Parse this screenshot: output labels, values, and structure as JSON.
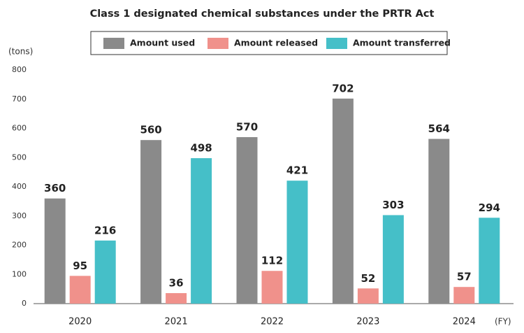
{
  "chart_data": {
    "type": "bar",
    "title": "Class 1 designated chemical substances under the PRTR Act",
    "y_label": "(tons)",
    "x_label": "(FY)",
    "categories": [
      "2020",
      "2021",
      "2022",
      "2023",
      "2024"
    ],
    "series": [
      {
        "name": "Amount used",
        "color": "#8a8a8a",
        "values": [
          360,
          560,
          570,
          702,
          564
        ]
      },
      {
        "name": "Amount released",
        "color": "#f0918b",
        "values": [
          95,
          36,
          112,
          52,
          57
        ]
      },
      {
        "name": "Amount transferred",
        "color": "#45bfc8",
        "values": [
          216,
          498,
          421,
          303,
          294
        ]
      }
    ],
    "ylim": [
      0,
      800
    ],
    "yticks": [
      0,
      100,
      200,
      300,
      400,
      500,
      600,
      700,
      800
    ],
    "grid": false
  }
}
